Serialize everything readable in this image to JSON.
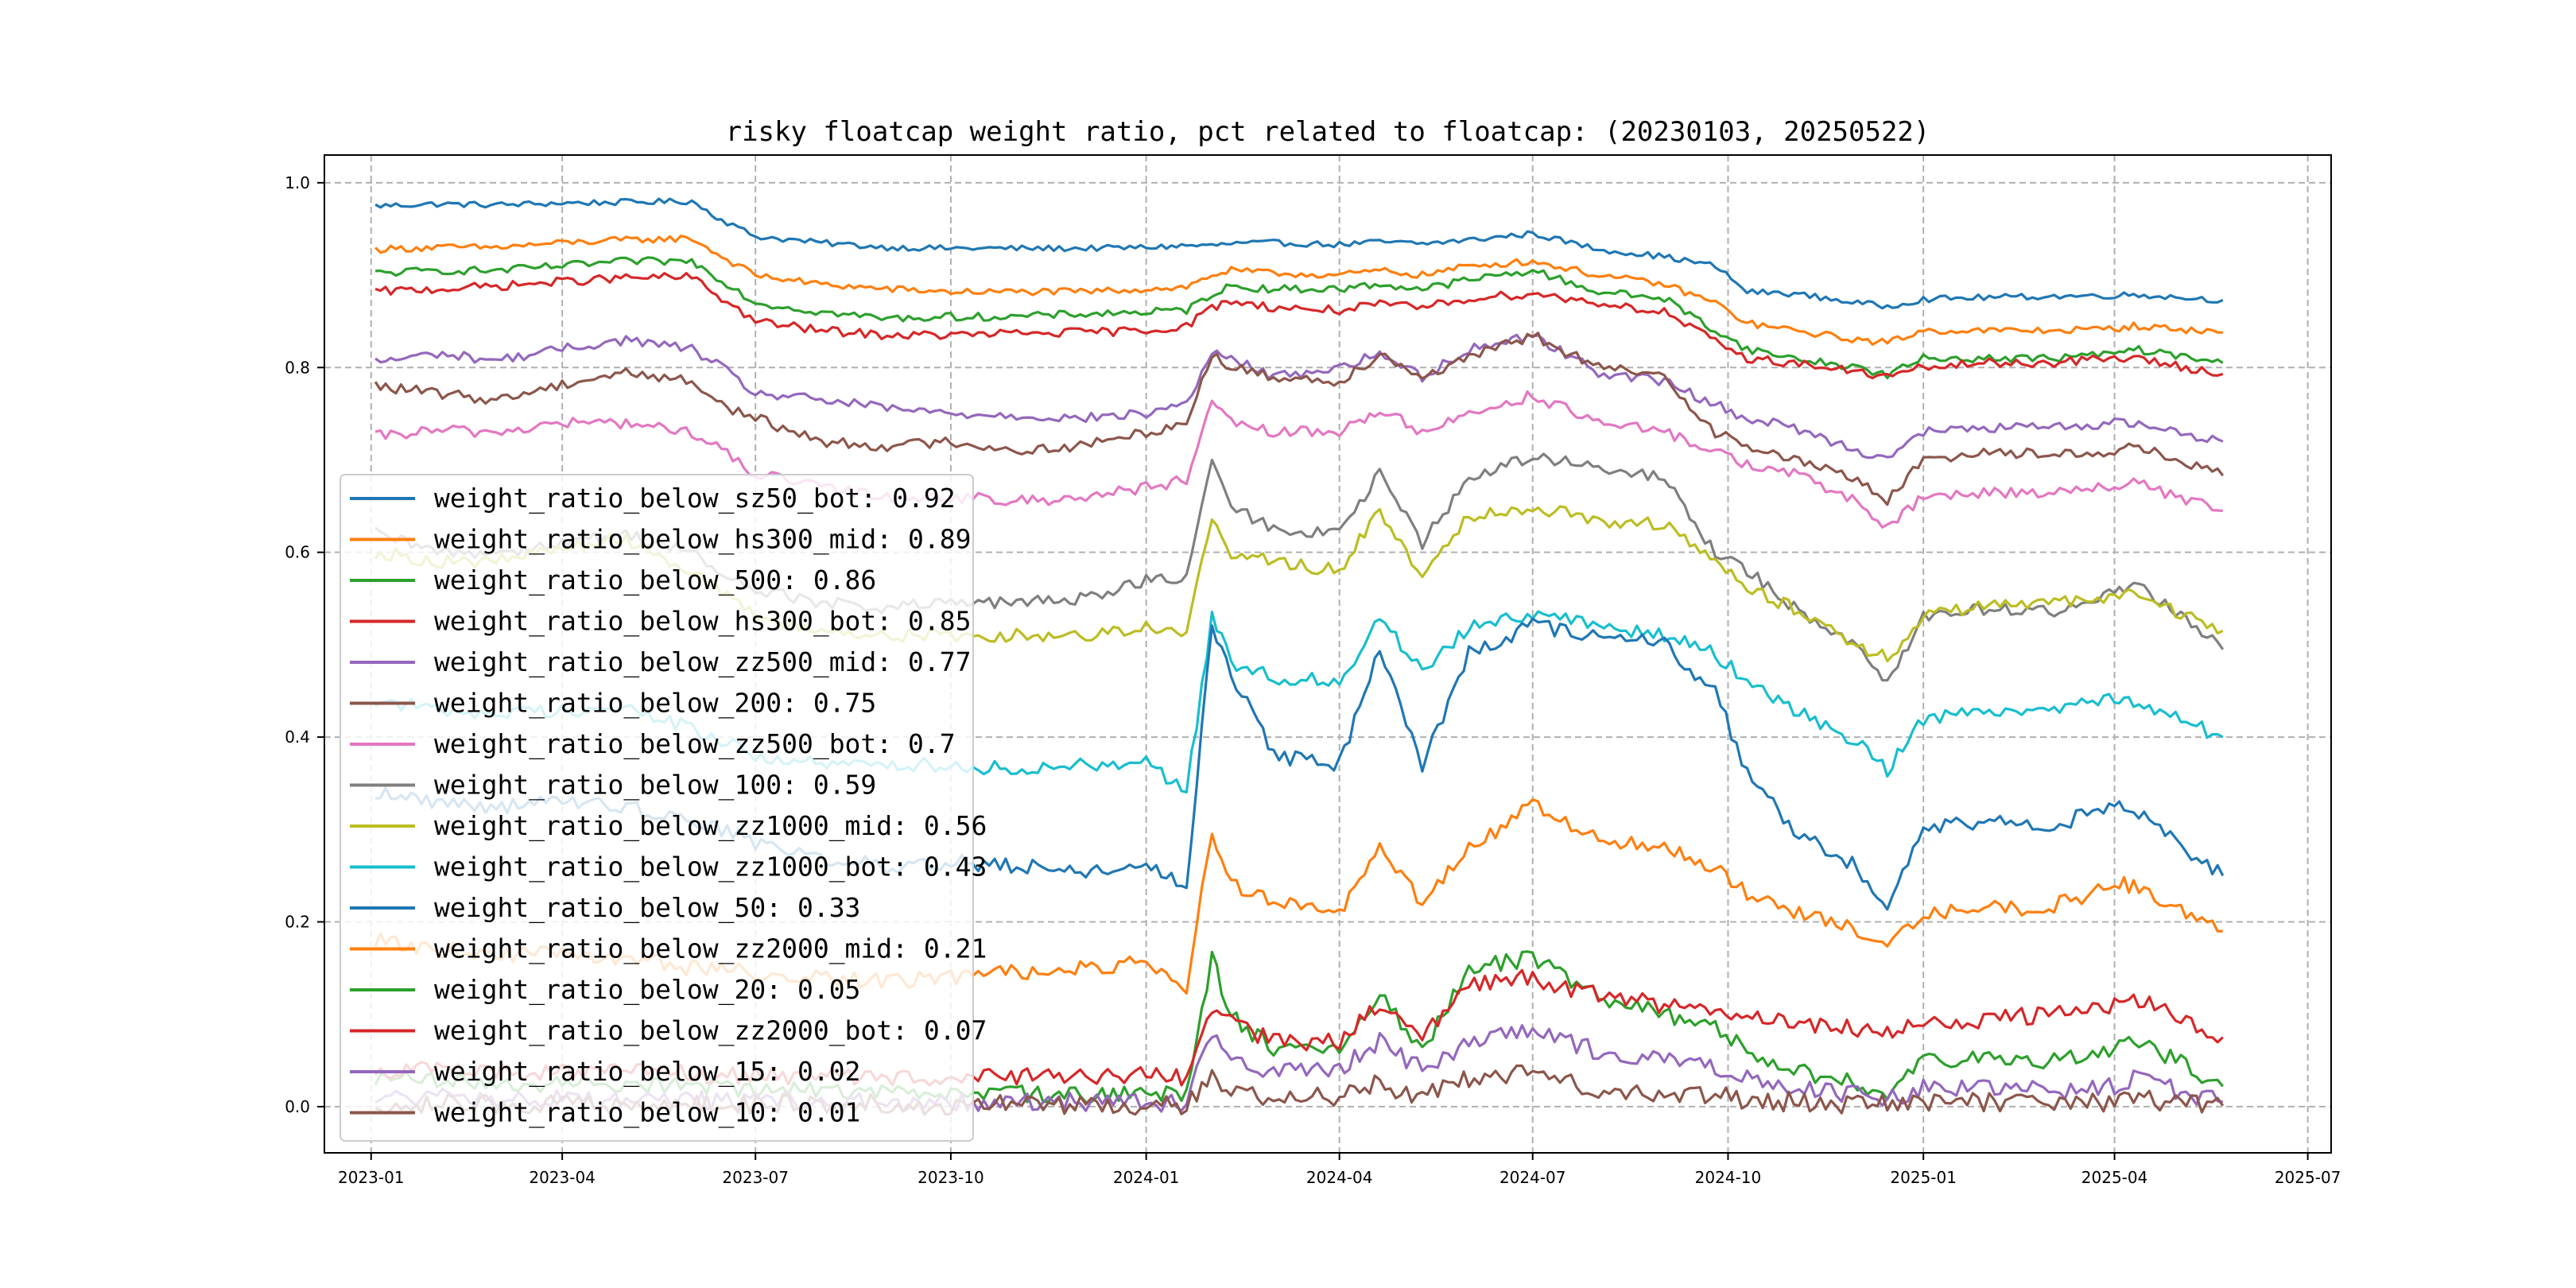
{
  "chart_data": {
    "type": "line",
    "title": "risky floatcap weight ratio, pct related to floatcap: (20230103, 20250522)",
    "xlabel": "",
    "ylabel": "",
    "x_range": [
      "2023-01-03",
      "2025-05-22"
    ],
    "ylim": [
      -0.05,
      1.03
    ],
    "x_ticks": [
      "2023-01",
      "2023-04",
      "2023-07",
      "2023-10",
      "2024-01",
      "2024-04",
      "2024-07",
      "2024-10",
      "2025-01",
      "2025-04",
      "2025-07"
    ],
    "y_ticks": [
      "0.0",
      "0.2",
      "0.4",
      "0.6",
      "0.8",
      "1.0"
    ],
    "grid": true,
    "legend_position": "lower-left",
    "x": [
      "2023-01-03",
      "2023-02-01",
      "2023-03-01",
      "2023-04-01",
      "2023-05-01",
      "2023-06-01",
      "2023-06-15",
      "2023-07-01",
      "2023-08-01",
      "2023-09-01",
      "2023-10-01",
      "2023-11-01",
      "2023-12-01",
      "2024-01-01",
      "2024-01-20",
      "2024-02-01",
      "2024-02-10",
      "2024-03-01",
      "2024-04-01",
      "2024-04-20",
      "2024-05-10",
      "2024-06-01",
      "2024-07-01",
      "2024-08-01",
      "2024-09-01",
      "2024-09-25",
      "2024-10-10",
      "2024-11-01",
      "2024-12-01",
      "2024-12-15",
      "2025-01-01",
      "2025-02-01",
      "2025-03-01",
      "2025-04-01",
      "2025-04-10",
      "2025-05-22"
    ],
    "series": [
      {
        "name": "weight_ratio_below_sz50_bot: 0.92",
        "color": "#1f77b4",
        "values": [
          0.975,
          0.977,
          0.976,
          0.978,
          0.979,
          0.98,
          0.96,
          0.942,
          0.935,
          0.93,
          0.929,
          0.929,
          0.929,
          0.93,
          0.932,
          0.932,
          0.934,
          0.935,
          0.933,
          0.936,
          0.934,
          0.938,
          0.945,
          0.928,
          0.92,
          0.91,
          0.882,
          0.88,
          0.87,
          0.866,
          0.874,
          0.876,
          0.877,
          0.878,
          0.879,
          0.873
        ]
      },
      {
        "name": "weight_ratio_below_hs300_mid: 0.89",
        "color": "#ff7f0e",
        "values": [
          0.928,
          0.93,
          0.93,
          0.935,
          0.938,
          0.94,
          0.92,
          0.9,
          0.89,
          0.885,
          0.882,
          0.882,
          0.882,
          0.885,
          0.887,
          0.9,
          0.905,
          0.902,
          0.9,
          0.905,
          0.9,
          0.91,
          0.915,
          0.9,
          0.89,
          0.87,
          0.848,
          0.84,
          0.83,
          0.827,
          0.84,
          0.84,
          0.84,
          0.842,
          0.845,
          0.838
        ]
      },
      {
        "name": "weight_ratio_below_500: 0.86",
        "color": "#2ca02c",
        "values": [
          0.902,
          0.905,
          0.905,
          0.91,
          0.915,
          0.915,
          0.895,
          0.87,
          0.86,
          0.853,
          0.855,
          0.855,
          0.858,
          0.86,
          0.862,
          0.88,
          0.888,
          0.885,
          0.885,
          0.89,
          0.885,
          0.895,
          0.905,
          0.882,
          0.875,
          0.84,
          0.82,
          0.81,
          0.8,
          0.792,
          0.81,
          0.81,
          0.81,
          0.815,
          0.82,
          0.805
        ]
      },
      {
        "name": "weight_ratio_below_hs300_bot: 0.85",
        "color": "#d62728",
        "values": [
          0.882,
          0.885,
          0.888,
          0.893,
          0.897,
          0.898,
          0.875,
          0.85,
          0.84,
          0.835,
          0.835,
          0.837,
          0.838,
          0.84,
          0.845,
          0.865,
          0.872,
          0.865,
          0.862,
          0.868,
          0.865,
          0.875,
          0.88,
          0.87,
          0.86,
          0.828,
          0.81,
          0.805,
          0.795,
          0.79,
          0.8,
          0.805,
          0.805,
          0.81,
          0.81,
          0.793
        ]
      },
      {
        "name": "weight_ratio_below_zz500_mid: 0.77",
        "color": "#9467bd",
        "values": [
          0.806,
          0.815,
          0.808,
          0.82,
          0.83,
          0.82,
          0.8,
          0.772,
          0.765,
          0.756,
          0.75,
          0.748,
          0.745,
          0.75,
          0.762,
          0.815,
          0.81,
          0.79,
          0.8,
          0.815,
          0.79,
          0.82,
          0.835,
          0.795,
          0.785,
          0.76,
          0.745,
          0.735,
          0.71,
          0.703,
          0.73,
          0.735,
          0.735,
          0.74,
          0.74,
          0.72
        ]
      },
      {
        "name": "weight_ratio_below_200: 0.75",
        "color": "#8c564b",
        "values": [
          0.78,
          0.772,
          0.765,
          0.782,
          0.795,
          0.785,
          0.76,
          0.745,
          0.72,
          0.715,
          0.72,
          0.71,
          0.715,
          0.73,
          0.74,
          0.815,
          0.8,
          0.79,
          0.785,
          0.815,
          0.79,
          0.81,
          0.835,
          0.8,
          0.79,
          0.73,
          0.715,
          0.7,
          0.68,
          0.655,
          0.7,
          0.71,
          0.705,
          0.71,
          0.715,
          0.683
        ]
      },
      {
        "name": "weight_ratio_below_zz500_bot: 0.7",
        "color": "#e377c2",
        "values": [
          0.725,
          0.732,
          0.73,
          0.74,
          0.74,
          0.73,
          0.71,
          0.685,
          0.67,
          0.66,
          0.66,
          0.655,
          0.66,
          0.67,
          0.678,
          0.76,
          0.74,
          0.73,
          0.73,
          0.755,
          0.73,
          0.75,
          0.77,
          0.74,
          0.73,
          0.71,
          0.695,
          0.685,
          0.655,
          0.625,
          0.66,
          0.665,
          0.665,
          0.672,
          0.675,
          0.645
        ]
      },
      {
        "name": "weight_ratio_below_100: 0.59",
        "color": "#7f7f7f",
        "values": [
          0.62,
          0.6,
          0.6,
          0.61,
          0.62,
          0.6,
          0.575,
          0.56,
          0.545,
          0.54,
          0.545,
          0.545,
          0.55,
          0.57,
          0.57,
          0.7,
          0.65,
          0.625,
          0.62,
          0.685,
          0.61,
          0.68,
          0.705,
          0.69,
          0.68,
          0.6,
          0.58,
          0.54,
          0.5,
          0.46,
          0.53,
          0.54,
          0.535,
          0.555,
          0.57,
          0.495
        ]
      },
      {
        "name": "weight_ratio_below_zz1000_mid: 0.56",
        "color": "#bcbd22",
        "values": [
          0.6,
          0.59,
          0.59,
          0.605,
          0.615,
          0.58,
          0.555,
          0.53,
          0.515,
          0.51,
          0.51,
          0.51,
          0.51,
          0.52,
          0.51,
          0.64,
          0.6,
          0.59,
          0.58,
          0.645,
          0.575,
          0.64,
          0.65,
          0.635,
          0.63,
          0.59,
          0.56,
          0.54,
          0.5,
          0.485,
          0.53,
          0.545,
          0.545,
          0.55,
          0.555,
          0.515
        ]
      },
      {
        "name": "weight_ratio_below_zz1000_bot: 0.43",
        "color": "#17becf",
        "values": [
          0.44,
          0.43,
          0.425,
          0.43,
          0.43,
          0.41,
          0.395,
          0.38,
          0.37,
          0.37,
          0.37,
          0.365,
          0.37,
          0.375,
          0.34,
          0.53,
          0.48,
          0.465,
          0.46,
          0.53,
          0.47,
          0.52,
          0.535,
          0.52,
          0.51,
          0.49,
          0.46,
          0.43,
          0.395,
          0.365,
          0.42,
          0.43,
          0.43,
          0.445,
          0.44,
          0.4
        ]
      },
      {
        "name": "weight_ratio_below_50: 0.33",
        "color": "#1f77b4",
        "values": [
          0.34,
          0.33,
          0.325,
          0.33,
          0.325,
          0.31,
          0.3,
          0.285,
          0.27,
          0.26,
          0.265,
          0.26,
          0.255,
          0.26,
          0.24,
          0.52,
          0.47,
          0.38,
          0.37,
          0.5,
          0.37,
          0.49,
          0.52,
          0.51,
          0.5,
          0.45,
          0.36,
          0.3,
          0.26,
          0.21,
          0.3,
          0.31,
          0.3,
          0.33,
          0.32,
          0.25
        ]
      },
      {
        "name": "weight_ratio_below_zz2000_mid: 0.21",
        "color": "#ff7f0e",
        "values": [
          0.18,
          0.17,
          0.165,
          0.165,
          0.16,
          0.15,
          0.148,
          0.145,
          0.14,
          0.135,
          0.14,
          0.145,
          0.15,
          0.155,
          0.13,
          0.3,
          0.24,
          0.22,
          0.21,
          0.28,
          0.22,
          0.28,
          0.325,
          0.29,
          0.28,
          0.26,
          0.23,
          0.21,
          0.19,
          0.175,
          0.21,
          0.215,
          0.215,
          0.24,
          0.24,
          0.19
        ]
      },
      {
        "name": "weight_ratio_below_20: 0.05",
        "color": "#2ca02c",
        "values": [
          0.03,
          0.028,
          0.025,
          0.025,
          0.025,
          0.023,
          0.02,
          0.02,
          0.018,
          0.016,
          0.015,
          0.014,
          0.013,
          0.014,
          0.012,
          0.16,
          0.1,
          0.06,
          0.06,
          0.12,
          0.06,
          0.15,
          0.16,
          0.12,
          0.1,
          0.085,
          0.06,
          0.04,
          0.025,
          0.015,
          0.05,
          0.055,
          0.05,
          0.06,
          0.075,
          0.022
        ]
      },
      {
        "name": "weight_ratio_below_zz2000_bot: 0.07",
        "color": "#d62728",
        "values": [
          0.04,
          0.04,
          0.038,
          0.038,
          0.037,
          0.035,
          0.034,
          0.033,
          0.033,
          0.032,
          0.032,
          0.032,
          0.032,
          0.033,
          0.03,
          0.1,
          0.09,
          0.07,
          0.07,
          0.11,
          0.08,
          0.13,
          0.14,
          0.12,
          0.11,
          0.105,
          0.095,
          0.09,
          0.085,
          0.08,
          0.09,
          0.095,
          0.1,
          0.11,
          0.12,
          0.075
        ]
      },
      {
        "name": "weight_ratio_below_15: 0.02",
        "color": "#9467bd",
        "values": [
          0.01,
          0.009,
          0.008,
          0.008,
          0.008,
          0.007,
          0.007,
          0.006,
          0.006,
          0.005,
          0.005,
          0.005,
          0.005,
          0.005,
          0.004,
          0.08,
          0.05,
          0.04,
          0.04,
          0.07,
          0.04,
          0.07,
          0.08,
          0.06,
          0.05,
          0.045,
          0.03,
          0.02,
          0.012,
          0.008,
          0.02,
          0.02,
          0.018,
          0.022,
          0.03,
          0.005
        ]
      },
      {
        "name": "weight_ratio_below_10: 0.01",
        "color": "#8c564b",
        "values": [
          0.003,
          0.003,
          0.002,
          0.002,
          0.002,
          0.002,
          0.002,
          0.002,
          0.002,
          0.002,
          0.002,
          0.002,
          0.002,
          0.002,
          0.002,
          0.03,
          0.02,
          0.01,
          0.01,
          0.025,
          0.01,
          0.03,
          0.035,
          0.02,
          0.015,
          0.012,
          0.008,
          0.005,
          0.003,
          0.002,
          0.005,
          0.005,
          0.004,
          0.005,
          0.008,
          0.001
        ]
      }
    ]
  }
}
